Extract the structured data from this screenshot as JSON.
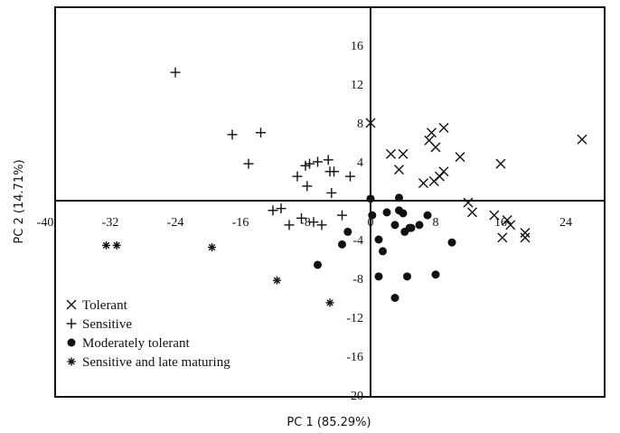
{
  "chart_data": {
    "type": "scatter",
    "xlabel": "PC 1 (85.29%)",
    "ylabel": "PC 2 (14.71%)",
    "xlim": [
      -40,
      28
    ],
    "ylim": [
      -20,
      20
    ],
    "x_ticks": [
      -40,
      -32,
      -24,
      -16,
      -8,
      0,
      8,
      16,
      24
    ],
    "x_tick_labels": [
      "-40",
      "-32",
      "-24",
      "-16",
      "-8",
      "0",
      "8",
      "16",
      "24"
    ],
    "y_ticks": [
      -20,
      -16,
      -12,
      -8,
      -4,
      4,
      8,
      12,
      16
    ],
    "y_tick_labels": [
      "-20",
      "-16",
      "-12",
      "-8",
      "-4",
      "4",
      "8",
      "12",
      "16"
    ],
    "grid": false,
    "legend_position": "bottom-left",
    "series": [
      {
        "name": "Tolerant",
        "marker": "x",
        "color": "#111111",
        "points": [
          [
            0,
            8
          ],
          [
            2.5,
            4.8
          ],
          [
            3.5,
            3.2
          ],
          [
            4,
            4.8
          ],
          [
            6.5,
            1.8
          ],
          [
            7.2,
            6.2
          ],
          [
            7.5,
            7
          ],
          [
            7.8,
            2
          ],
          [
            8,
            5.5
          ],
          [
            8.5,
            2.5
          ],
          [
            9,
            3
          ],
          [
            9,
            7.5
          ],
          [
            11,
            4.5
          ],
          [
            12,
            -0.2
          ],
          [
            12.5,
            -1.2
          ],
          [
            15.2,
            -1.5
          ],
          [
            16,
            3.8
          ],
          [
            16.2,
            -3.8
          ],
          [
            16.8,
            -2
          ],
          [
            17.2,
            -2.5
          ],
          [
            19,
            -3.3
          ],
          [
            19,
            -3.8
          ],
          [
            26,
            6.3
          ]
        ]
      },
      {
        "name": "Sensitive",
        "marker": "plus",
        "color": "#111111",
        "points": [
          [
            -24,
            13.2
          ],
          [
            -17,
            6.8
          ],
          [
            -15,
            3.8
          ],
          [
            -13.5,
            7
          ],
          [
            -12,
            -1
          ],
          [
            -11,
            -0.8
          ],
          [
            -10,
            -2.5
          ],
          [
            -9,
            2.5
          ],
          [
            -8.5,
            -1.8
          ],
          [
            -8,
            3.6
          ],
          [
            -7.8,
            1.5
          ],
          [
            -7.5,
            3.8
          ],
          [
            -7,
            -2.2
          ],
          [
            -6.5,
            4
          ],
          [
            -6,
            -2.5
          ],
          [
            -5.2,
            4.2
          ],
          [
            -5,
            3
          ],
          [
            -4.8,
            0.8
          ],
          [
            -4.5,
            3
          ],
          [
            -3.5,
            -1.5
          ],
          [
            -2.5,
            2.5
          ]
        ]
      },
      {
        "name": "Moderately tolerant",
        "marker": "dot",
        "color": "#111111",
        "points": [
          [
            0,
            0.2
          ],
          [
            0.2,
            -1.5
          ],
          [
            1,
            -7.8
          ],
          [
            1,
            -4
          ],
          [
            1.5,
            -5.2
          ],
          [
            2,
            -1.2
          ],
          [
            3,
            -2.5
          ],
          [
            3,
            -10
          ],
          [
            3.5,
            0.3
          ],
          [
            3.5,
            -1
          ],
          [
            4,
            -1.3
          ],
          [
            4.2,
            -3.2
          ],
          [
            4.5,
            -7.8
          ],
          [
            4.8,
            -2.8
          ],
          [
            5,
            -2.8
          ],
          [
            6,
            -2.5
          ],
          [
            7,
            -1.5
          ],
          [
            8,
            -7.6
          ],
          [
            10,
            -4.3
          ],
          [
            -2.8,
            -3.2
          ],
          [
            -3.5,
            -4.5
          ],
          [
            -6.5,
            -6.6
          ]
        ]
      },
      {
        "name": "Sensitive and late maturing",
        "marker": "asterisk",
        "color": "#111111",
        "points": [
          [
            -32.5,
            -4.6
          ],
          [
            -31.2,
            -4.6
          ],
          [
            -19.5,
            -4.8
          ],
          [
            -11.5,
            -8.2
          ],
          [
            -5,
            -10.5
          ]
        ]
      }
    ]
  }
}
